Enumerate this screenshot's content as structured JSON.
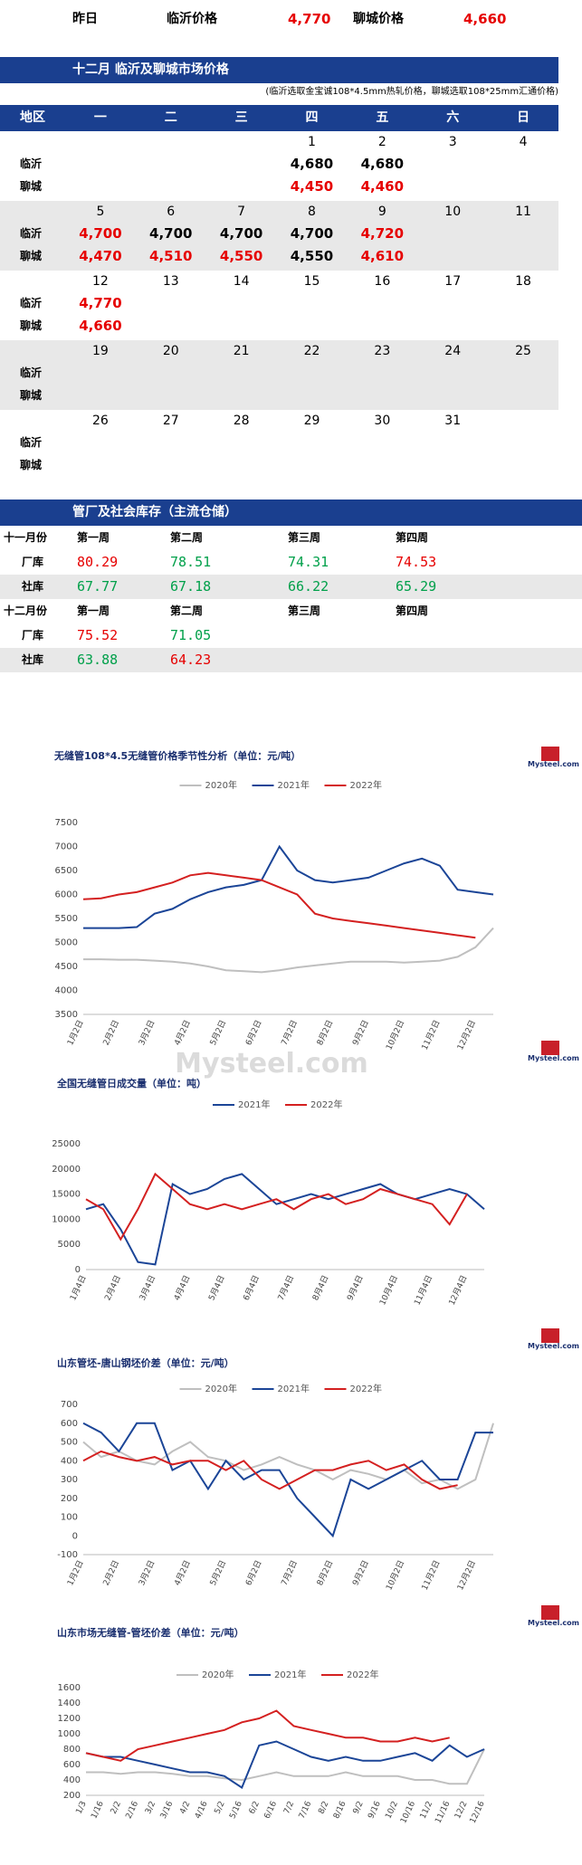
{
  "summary": {
    "label": "昨日",
    "linyi_label": "临沂价格",
    "linyi_price": "4,770",
    "liaocheng_label": "聊城价格",
    "liaocheng_price": "4,660",
    "price_color": "#e60000"
  },
  "calendar": {
    "title": "十二月 临沂及聊城市场价格",
    "note": "(临沂选取金宝诚108*4.5mm热轧价格，聊城选取108*25mm汇通价格)",
    "headers": [
      "地区",
      "一",
      "二",
      "三",
      "四",
      "五",
      "六",
      "日"
    ],
    "cities": [
      "临沂",
      "聊城"
    ],
    "weeks": [
      {
        "shaded": false,
        "days": [
          null,
          null,
          null,
          1,
          2,
          3,
          4
        ],
        "rows": [
          [
            null,
            null,
            null,
            {
              "value": "4,680",
              "color": "#000000"
            },
            {
              "value": "4,680",
              "color": "#000000"
            },
            null,
            null
          ],
          [
            null,
            null,
            null,
            {
              "value": "4,450",
              "color": "#e60000"
            },
            {
              "value": "4,460",
              "color": "#e60000"
            },
            null,
            null
          ]
        ]
      },
      {
        "shaded": true,
        "days": [
          5,
          6,
          7,
          8,
          9,
          10,
          11
        ],
        "rows": [
          [
            {
              "value": "4,700",
              "color": "#e60000"
            },
            {
              "value": "4,700",
              "color": "#000000"
            },
            {
              "value": "4,700",
              "color": "#000000"
            },
            {
              "value": "4,700",
              "color": "#000000"
            },
            {
              "value": "4,720",
              "color": "#e60000"
            },
            null,
            null
          ],
          [
            {
              "value": "4,470",
              "color": "#e60000"
            },
            {
              "value": "4,510",
              "color": "#e60000"
            },
            {
              "value": "4,550",
              "color": "#e60000"
            },
            {
              "value": "4,550",
              "color": "#000000"
            },
            {
              "value": "4,610",
              "color": "#e60000"
            },
            null,
            null
          ]
        ]
      },
      {
        "shaded": false,
        "days": [
          12,
          13,
          14,
          15,
          16,
          17,
          18
        ],
        "rows": [
          [
            {
              "value": "4,770",
              "color": "#e60000"
            },
            null,
            null,
            null,
            null,
            null,
            null
          ],
          [
            {
              "value": "4,660",
              "color": "#e60000"
            },
            null,
            null,
            null,
            null,
            null,
            null
          ]
        ]
      },
      {
        "shaded": true,
        "days": [
          19,
          20,
          21,
          22,
          23,
          24,
          25
        ],
        "rows": [
          [
            null,
            null,
            null,
            null,
            null,
            null,
            null
          ],
          [
            null,
            null,
            null,
            null,
            null,
            null,
            null
          ]
        ]
      },
      {
        "shaded": false,
        "days": [
          26,
          27,
          28,
          29,
          30,
          31,
          null
        ],
        "rows": [
          [
            null,
            null,
            null,
            null,
            null,
            null,
            null
          ],
          [
            null,
            null,
            null,
            null,
            null,
            null,
            null
          ]
        ]
      }
    ]
  },
  "inventory": {
    "title": "管厂及社会库存（主流仓储）",
    "blocks": [
      {
        "header": [
          "十一月份",
          "第一周",
          "第二周",
          "第三周",
          "第四周"
        ],
        "rows": [
          {
            "label": "厂库",
            "shaded": false,
            "cells": [
              {
                "value": 80.29,
                "color": "#e60000"
              },
              {
                "value": 78.51,
                "color": "#00a04a"
              },
              {
                "value": 74.31,
                "color": "#00a04a"
              },
              {
                "value": 74.53,
                "color": "#e60000"
              }
            ]
          },
          {
            "label": "社库",
            "shaded": true,
            "cells": [
              {
                "value": 67.77,
                "color": "#00a04a"
              },
              {
                "value": 67.18,
                "color": "#00a04a"
              },
              {
                "value": 66.22,
                "color": "#00a04a"
              },
              {
                "value": 65.29,
                "color": "#00a04a"
              }
            ]
          }
        ]
      },
      {
        "header": [
          "十二月份",
          "第一周",
          "第二周",
          "第三周",
          "第四周"
        ],
        "rows": [
          {
            "label": "厂库",
            "shaded": false,
            "cells": [
              {
                "value": 75.52,
                "color": "#e60000"
              },
              {
                "value": 71.05,
                "color": "#00a04a"
              },
              null,
              null
            ]
          },
          {
            "label": "社库",
            "shaded": true,
            "cells": [
              {
                "value": 63.88,
                "color": "#00a04a"
              },
              {
                "value": 64.23,
                "color": "#e60000"
              },
              null,
              null
            ]
          }
        ]
      }
    ]
  },
  "chart_data": [
    {
      "type": "line",
      "title": "无缝管108*4.5无缝管价格季节性分析（单位：元/吨）",
      "logo": "Mysteel.com",
      "watermark": "Mysteel.com",
      "categories": [
        "1月2日",
        null,
        "2月2日",
        null,
        "3月2日",
        null,
        "4月2日",
        null,
        "5月2日",
        null,
        "6月2日",
        null,
        "7月2日",
        null,
        "8月2日",
        null,
        "9月2日",
        null,
        "10月2日",
        null,
        "11月2日",
        null,
        "12月2日",
        null
      ],
      "series": [
        {
          "name": "2020年",
          "color": "#bfbfbf",
          "values": [
            4650,
            4650,
            4640,
            4640,
            4620,
            4600,
            4560,
            4500,
            4420,
            4400,
            4380,
            4420,
            4480,
            4520,
            4560,
            4600,
            4600,
            4600,
            4580,
            4600,
            4620,
            4700,
            4900,
            5300
          ]
        },
        {
          "name": "2021年",
          "color": "#1b4597",
          "values": [
            5300,
            5300,
            5300,
            5320,
            5600,
            5700,
            5900,
            6050,
            6150,
            6200,
            6300,
            7000,
            6500,
            6300,
            6250,
            6300,
            6350,
            6500,
            6650,
            6750,
            6600,
            6100,
            6050,
            6000
          ]
        },
        {
          "name": "2022年",
          "color": "#d42020",
          "values": [
            5900,
            5920,
            6000,
            6050,
            6150,
            6250,
            6400,
            6450,
            6400,
            6350,
            6300,
            6150,
            6000,
            5600,
            5500,
            5450,
            5400,
            5350,
            5300,
            5250,
            5200,
            5150,
            5100,
            null
          ]
        }
      ],
      "ylim": [
        3500,
        7500
      ],
      "yticks": [
        3500,
        4000,
        4500,
        5000,
        5500,
        6000,
        6500,
        7000,
        7500
      ]
    },
    {
      "type": "line",
      "title": "全国无缝管日成交量（单位：吨）",
      "logo": "Mysteel.com",
      "categories": [
        "1月4日",
        null,
        "2月4日",
        null,
        "3月4日",
        null,
        "4月4日",
        null,
        "5月4日",
        null,
        "6月4日",
        null,
        "7月4日",
        null,
        "8月4日",
        null,
        "9月4日",
        null,
        "10月4日",
        null,
        "11月4日",
        null,
        "12月4日",
        null
      ],
      "series": [
        {
          "name": "2021年",
          "color": "#1b4597",
          "values": [
            12000,
            13000,
            8000,
            1500,
            1000,
            17000,
            15000,
            16000,
            18000,
            19000,
            16000,
            13000,
            14000,
            15000,
            14000,
            15000,
            16000,
            17000,
            15000,
            14000,
            15000,
            16000,
            15000,
            12000
          ]
        },
        {
          "name": "2022年",
          "color": "#d42020",
          "values": [
            14000,
            12000,
            6000,
            12000,
            19000,
            16000,
            13000,
            12000,
            13000,
            12000,
            13000,
            14000,
            12000,
            14000,
            15000,
            13000,
            14000,
            16000,
            15000,
            14000,
            13000,
            9000,
            15000,
            null
          ]
        }
      ],
      "ylim": [
        0,
        25000
      ],
      "yticks": [
        0,
        5000,
        10000,
        15000,
        20000,
        25000
      ]
    },
    {
      "type": "line",
      "title": "山东管坯-唐山钢坯价差（单位：元/吨）",
      "logo": "Mysteel.com",
      "categories": [
        "1月2日",
        null,
        "2月2日",
        null,
        "3月2日",
        null,
        "4月2日",
        null,
        "5月2日",
        null,
        "6月2日",
        null,
        "7月2日",
        null,
        "8月2日",
        null,
        "9月2日",
        null,
        "10月2日",
        null,
        "11月2日",
        null,
        "12月2日",
        null
      ],
      "series": [
        {
          "name": "2020年",
          "color": "#bfbfbf",
          "values": [
            500,
            420,
            450,
            400,
            380,
            450,
            500,
            420,
            400,
            350,
            380,
            420,
            380,
            350,
            300,
            350,
            330,
            300,
            350,
            280,
            300,
            250,
            300,
            600
          ]
        },
        {
          "name": "2021年",
          "color": "#1b4597",
          "values": [
            600,
            550,
            450,
            600,
            600,
            350,
            400,
            250,
            400,
            300,
            350,
            350,
            200,
            100,
            0,
            300,
            250,
            300,
            350,
            400,
            300,
            300,
            550,
            550
          ]
        },
        {
          "name": "2022年",
          "color": "#d42020",
          "values": [
            400,
            450,
            420,
            400,
            420,
            380,
            400,
            400,
            350,
            400,
            300,
            250,
            300,
            350,
            350,
            380,
            400,
            350,
            380,
            300,
            250,
            270,
            null,
            null
          ]
        }
      ],
      "ylim": [
        -100,
        700
      ],
      "yticks": [
        -100,
        0,
        100,
        200,
        300,
        400,
        500,
        600,
        700
      ]
    },
    {
      "type": "line",
      "title": "山东市场无缝管-管坯价差（单位：元/吨）",
      "logo": "Mysteel.com",
      "categories": [
        "1/3",
        "1/16",
        "2/2",
        "2/16",
        "3/2",
        "3/16",
        "4/2",
        "4/16",
        "5/2",
        "5/16",
        "6/2",
        "6/16",
        "7/2",
        "7/16",
        "8/2",
        "8/16",
        "9/2",
        "9/16",
        "10/2",
        "10/16",
        "11/2",
        "11/16",
        "12/2",
        "12/16"
      ],
      "series": [
        {
          "name": "2020年",
          "color": "#bfbfbf",
          "values": [
            500,
            500,
            480,
            500,
            500,
            480,
            450,
            450,
            420,
            400,
            450,
            500,
            450,
            450,
            450,
            500,
            450,
            450,
            450,
            400,
            400,
            350,
            350,
            800
          ]
        },
        {
          "name": "2021年",
          "color": "#1b4597",
          "values": [
            750,
            700,
            700,
            650,
            600,
            550,
            500,
            500,
            450,
            300,
            850,
            900,
            800,
            700,
            650,
            700,
            650,
            650,
            700,
            750,
            650,
            850,
            700,
            800
          ]
        },
        {
          "name": "2022年",
          "color": "#d42020",
          "values": [
            750,
            700,
            650,
            800,
            850,
            900,
            950,
            1000,
            1050,
            1150,
            1200,
            1300,
            1100,
            1050,
            1000,
            950,
            950,
            900,
            900,
            950,
            900,
            950,
            null,
            null
          ]
        }
      ],
      "ylim": [
        200,
        1600
      ],
      "yticks": [
        200,
        400,
        600,
        800,
        1000,
        1200,
        1400,
        1600
      ]
    }
  ]
}
